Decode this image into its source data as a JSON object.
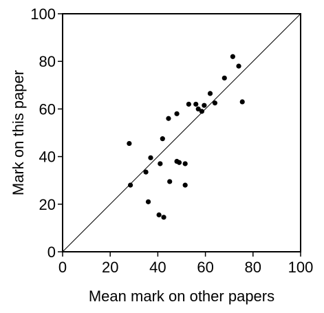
{
  "chart_data": {
    "type": "scatter",
    "title": "",
    "xlabel": "Mean mark on other papers",
    "ylabel": "Mark on this paper",
    "xlim": [
      0,
      100
    ],
    "ylim": [
      0,
      100
    ],
    "x_ticks": [
      "0",
      "20",
      "40",
      "60",
      "80",
      "100"
    ],
    "y_ticks": [
      "0",
      "20",
      "40",
      "60",
      "80",
      "100"
    ],
    "reference_line": "y = x",
    "grid": false,
    "point_color": "#000000",
    "points": [
      {
        "x": 28,
        "y": 45.5
      },
      {
        "x": 28.5,
        "y": 28
      },
      {
        "x": 35,
        "y": 33.5
      },
      {
        "x": 36,
        "y": 21
      },
      {
        "x": 37,
        "y": 39.5
      },
      {
        "x": 40.5,
        "y": 15.5
      },
      {
        "x": 41,
        "y": 37
      },
      {
        "x": 42,
        "y": 47.5
      },
      {
        "x": 42.5,
        "y": 14.5
      },
      {
        "x": 44.5,
        "y": 56
      },
      {
        "x": 45,
        "y": 29.5
      },
      {
        "x": 48,
        "y": 58
      },
      {
        "x": 48,
        "y": 38
      },
      {
        "x": 49,
        "y": 37.5
      },
      {
        "x": 51.5,
        "y": 37
      },
      {
        "x": 51.5,
        "y": 28
      },
      {
        "x": 53,
        "y": 62
      },
      {
        "x": 56,
        "y": 62
      },
      {
        "x": 57,
        "y": 60
      },
      {
        "x": 58.5,
        "y": 59
      },
      {
        "x": 59.5,
        "y": 61.5
      },
      {
        "x": 62,
        "y": 66.5
      },
      {
        "x": 64,
        "y": 62.5
      },
      {
        "x": 68,
        "y": 73
      },
      {
        "x": 71.5,
        "y": 82
      },
      {
        "x": 74,
        "y": 78
      },
      {
        "x": 75.5,
        "y": 63
      }
    ]
  }
}
